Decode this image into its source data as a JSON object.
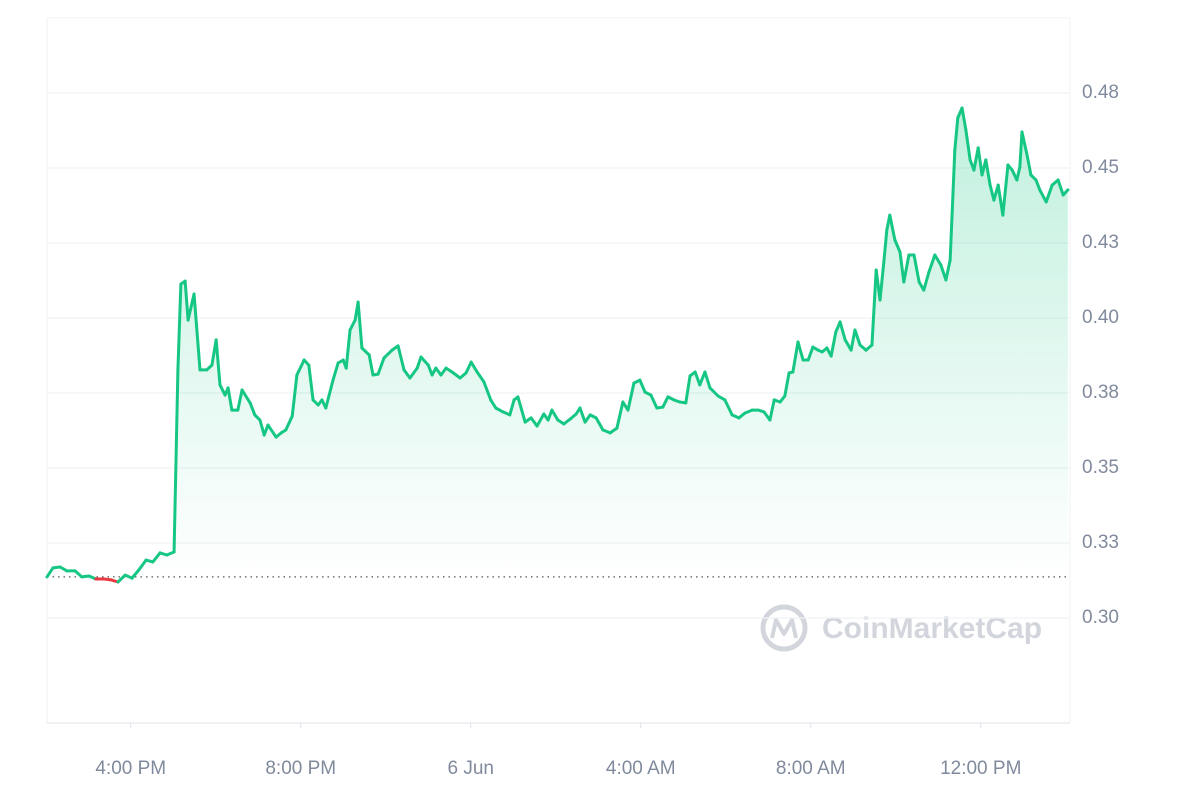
{
  "chart_data": {
    "type": "line",
    "watermark": "CoinMarketCap",
    "color": "#16c784",
    "down_color": "#ea3943",
    "baseline": 0.3137,
    "grid": true,
    "xlim": [
      14.03,
      38.1
    ],
    "xticks": [
      {
        "value": 16,
        "label": "4:00 PM"
      },
      {
        "value": 20,
        "label": "8:00 PM"
      },
      {
        "value": 24,
        "label": "6 Jun"
      },
      {
        "value": 28,
        "label": "4:00 AM"
      },
      {
        "value": 32,
        "label": "8:00 AM"
      },
      {
        "value": 36,
        "label": "12:00 PM"
      }
    ],
    "ylim": [
      0.265,
      0.5
    ],
    "yticks": [
      {
        "value": 0.3,
        "label": "0.30"
      },
      {
        "value": 0.325,
        "label": "0.33"
      },
      0.35,
      {
        "value": 0.375,
        "label": "0.38"
      },
      {
        "value": 0.4,
        "label": "0.40"
      },
      {
        "value": 0.425,
        "label": "0.43"
      },
      0.45,
      {
        "value": 0.475,
        "label": "0.48"
      }
    ],
    "x": [
      14.03,
      14.17,
      14.34,
      14.5,
      14.69,
      14.85,
      15.02,
      15.18,
      15.37,
      15.54,
      15.7,
      15.87,
      16.03,
      16.19,
      16.36,
      16.52,
      16.69,
      16.85,
      17.02,
      17.11,
      17.18,
      17.28,
      17.35,
      17.49,
      17.63,
      17.79,
      17.91,
      18.01,
      18.1,
      18.22,
      18.29,
      18.38,
      18.52,
      18.62,
      18.81,
      18.92,
      19.04,
      19.14,
      19.23,
      19.42,
      19.54,
      19.65,
      19.8,
      19.91,
      20.08,
      20.19,
      20.29,
      20.41,
      20.5,
      20.59,
      20.76,
      20.88,
      21.0,
      21.07,
      21.16,
      21.28,
      21.35,
      21.44,
      21.61,
      21.7,
      21.82,
      21.96,
      22.15,
      22.29,
      22.43,
      22.57,
      22.74,
      22.83,
      23.0,
      23.09,
      23.18,
      23.3,
      23.42,
      23.56,
      23.75,
      23.89,
      24.01,
      24.15,
      24.31,
      24.47,
      24.59,
      24.76,
      24.92,
      25.02,
      25.11,
      25.28,
      25.42,
      25.56,
      25.72,
      25.82,
      25.91,
      26.05,
      26.19,
      26.34,
      26.48,
      26.57,
      26.69,
      26.81,
      26.95,
      27.11,
      27.28,
      27.44,
      27.58,
      27.7,
      27.84,
      27.98,
      28.1,
      28.24,
      28.38,
      28.52,
      28.64,
      28.78,
      28.92,
      29.06,
      29.16,
      29.28,
      29.39,
      29.51,
      29.63,
      29.82,
      29.98,
      30.15,
      30.31,
      30.45,
      30.62,
      30.76,
      30.9,
      31.04,
      31.14,
      31.28,
      31.39,
      31.49,
      31.58,
      31.7,
      31.82,
      31.94,
      32.05,
      32.17,
      32.27,
      32.38,
      32.48,
      32.59,
      32.69,
      32.81,
      32.95,
      33.04,
      33.16,
      33.3,
      33.44,
      33.54,
      33.63,
      33.72,
      33.79,
      33.86,
      33.98,
      34.1,
      34.19,
      34.31,
      34.43,
      34.55,
      34.66,
      34.78,
      34.92,
      35.06,
      35.18,
      35.28,
      35.39,
      35.46,
      35.56,
      35.65,
      35.75,
      35.84,
      35.94,
      36.03,
      36.12,
      36.22,
      36.31,
      36.41,
      36.52,
      36.64,
      36.74,
      36.85,
      36.92,
      36.97,
      37.09,
      37.18,
      37.3,
      37.39,
      37.54,
      37.68,
      37.82,
      37.94,
      38.05
    ],
    "values": [
      0.3137,
      0.3167,
      0.317,
      0.3157,
      0.3157,
      0.3137,
      0.314,
      0.313,
      0.313,
      0.3127,
      0.312,
      0.3143,
      0.3133,
      0.316,
      0.3193,
      0.3187,
      0.3217,
      0.321,
      0.322,
      0.3827,
      0.4113,
      0.4123,
      0.3993,
      0.408,
      0.3827,
      0.3827,
      0.3843,
      0.3927,
      0.3777,
      0.3743,
      0.3767,
      0.3693,
      0.3693,
      0.376,
      0.3717,
      0.3677,
      0.366,
      0.361,
      0.3643,
      0.3603,
      0.3617,
      0.3627,
      0.3673,
      0.381,
      0.386,
      0.3843,
      0.3727,
      0.371,
      0.3727,
      0.37,
      0.3793,
      0.385,
      0.386,
      0.3833,
      0.396,
      0.3993,
      0.4053,
      0.39,
      0.3877,
      0.381,
      0.3813,
      0.3867,
      0.3893,
      0.3907,
      0.3827,
      0.38,
      0.3833,
      0.387,
      0.3843,
      0.381,
      0.3833,
      0.381,
      0.3833,
      0.382,
      0.38,
      0.3817,
      0.3853,
      0.382,
      0.3787,
      0.3727,
      0.37,
      0.3687,
      0.3677,
      0.3727,
      0.3737,
      0.3653,
      0.3667,
      0.364,
      0.368,
      0.366,
      0.3693,
      0.366,
      0.3647,
      0.3663,
      0.368,
      0.37,
      0.3653,
      0.3677,
      0.3667,
      0.3627,
      0.3617,
      0.3633,
      0.372,
      0.3693,
      0.3783,
      0.3793,
      0.3753,
      0.3743,
      0.37,
      0.3703,
      0.3737,
      0.3727,
      0.372,
      0.3717,
      0.3807,
      0.382,
      0.3777,
      0.382,
      0.3767,
      0.374,
      0.3727,
      0.3677,
      0.3667,
      0.3683,
      0.3693,
      0.3693,
      0.3687,
      0.366,
      0.3727,
      0.372,
      0.374,
      0.3817,
      0.382,
      0.392,
      0.386,
      0.386,
      0.3903,
      0.3893,
      0.3887,
      0.39,
      0.3873,
      0.3953,
      0.3987,
      0.3927,
      0.3893,
      0.396,
      0.391,
      0.3893,
      0.391,
      0.416,
      0.406,
      0.4187,
      0.4293,
      0.4343,
      0.426,
      0.422,
      0.412,
      0.421,
      0.421,
      0.412,
      0.4093,
      0.4153,
      0.421,
      0.4177,
      0.4127,
      0.4193,
      0.456,
      0.4667,
      0.47,
      0.4627,
      0.4527,
      0.4493,
      0.4567,
      0.4477,
      0.4527,
      0.4443,
      0.4393,
      0.4443,
      0.4343,
      0.451,
      0.4493,
      0.446,
      0.4503,
      0.462,
      0.4543,
      0.4477,
      0.446,
      0.4427,
      0.4387,
      0.4443,
      0.446,
      0.441,
      0.4427
    ]
  }
}
